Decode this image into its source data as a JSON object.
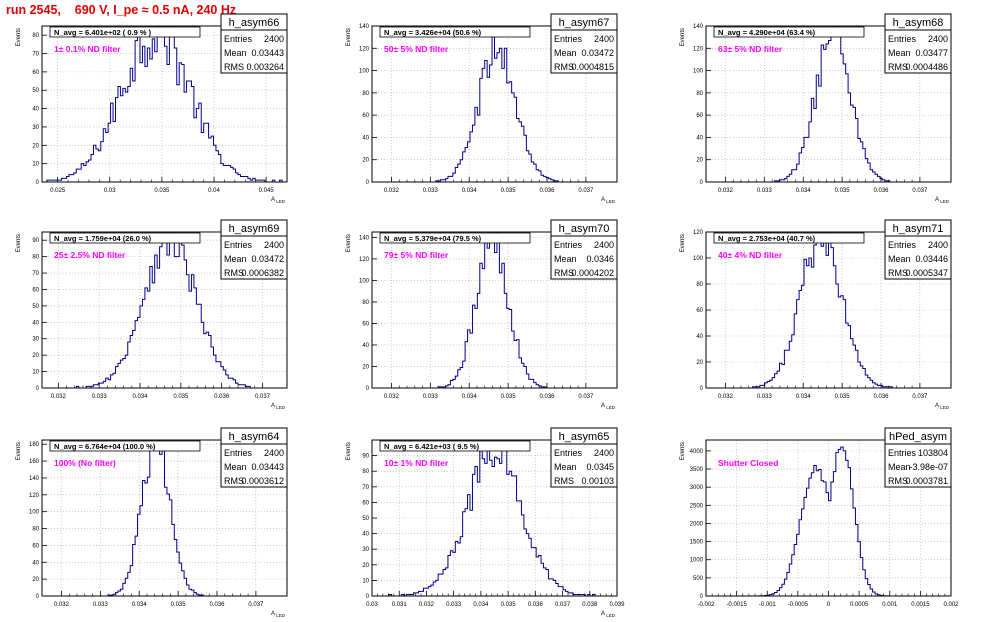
{
  "page": {
    "run_title": "run 2545,    690 V, I_pe ≈ 0.5 nA, 240 Hz"
  },
  "colors": {
    "histogram": "#00008b",
    "annotation": "#ff00ff",
    "title": "#e00000",
    "grid": "#b0b0b0"
  },
  "chart_data": [
    {
      "type": "bar",
      "name": "h_asym66",
      "ylabel": "Events",
      "xlabel": "A_LED",
      "n_avg_text": "N_avg = 6.401e+02 ( 0.9 % )",
      "annotation": "1± 0.1% ND filter",
      "stats": {
        "entries_label": "Entries",
        "entries": "2400",
        "mean_label": "Mean",
        "mean": "0.03443",
        "rms_label": "RMS",
        "rms": "0.003264"
      },
      "xlim": [
        0.0235,
        0.047
      ],
      "ylim": [
        0,
        85
      ],
      "xticks": [
        0.025,
        0.03,
        0.035,
        0.04,
        0.045
      ],
      "xtick_labels": [
        "0.025",
        "0.03",
        "0.035",
        "0.04",
        "0.045"
      ],
      "yticks": [
        0,
        10,
        20,
        30,
        40,
        50,
        60,
        70,
        80
      ],
      "mean": 0.03443,
      "rms": 0.003264,
      "peak": 83,
      "total": 2400,
      "shape": "wide"
    },
    {
      "type": "bar",
      "name": "h_asym67",
      "ylabel": "Events",
      "xlabel": "A_LED",
      "n_avg_text": "N_avg = 3.426e+04 (50.6 %)",
      "annotation": "50± 5% ND filter",
      "stats": {
        "entries_label": "Entries",
        "entries": "2400",
        "mean_label": "Mean",
        "mean": "0.03472",
        "rms_label": "RMS",
        "rms": "0.0004815"
      },
      "xlim": [
        0.0315,
        0.0378
      ],
      "ylim": [
        0,
        140
      ],
      "xticks": [
        0.032,
        0.033,
        0.034,
        0.035,
        0.036,
        0.037
      ],
      "xtick_labels": [
        "0.032",
        "0.033",
        "0.034",
        "0.035",
        "0.036",
        "0.037"
      ],
      "yticks": [
        0,
        20,
        40,
        60,
        80,
        100,
        120,
        140
      ],
      "mean": 0.03472,
      "rms": 0.0004815,
      "peak": 118,
      "total": 2400,
      "shape": "gauss"
    },
    {
      "type": "bar",
      "name": "h_asym68",
      "ylabel": "Events",
      "xlabel": "A_LED",
      "n_avg_text": "N_avg = 4.290e+04 (63.4 %)",
      "annotation": "63± 5% ND filter",
      "stats": {
        "entries_label": "Entries",
        "entries": "2400",
        "mean_label": "Mean",
        "mean": "0.03477",
        "rms_label": "RMS",
        "rms": "0.0004486"
      },
      "xlim": [
        0.0315,
        0.0378
      ],
      "ylim": [
        0,
        140
      ],
      "xticks": [
        0.032,
        0.033,
        0.034,
        0.035,
        0.036,
        0.037
      ],
      "xtick_labels": [
        "0.032",
        "0.033",
        "0.034",
        "0.035",
        "0.036",
        "0.037"
      ],
      "yticks": [
        0,
        20,
        40,
        60,
        80,
        100,
        120,
        140
      ],
      "mean": 0.03477,
      "rms": 0.0004486,
      "peak": 135,
      "total": 2400,
      "shape": "gauss"
    },
    {
      "type": "bar",
      "name": "h_asym69",
      "ylabel": "Events",
      "xlabel": "A_LED",
      "n_avg_text": "N_avg = 1.759e+04 (26.0 %)",
      "annotation": "25± 2.5% ND filter",
      "stats": {
        "entries_label": "Entries",
        "entries": "2400",
        "mean_label": "Mean",
        "mean": "0.03472",
        "rms_label": "RMS",
        "rms": "0.0006382"
      },
      "xlim": [
        0.0316,
        0.0376
      ],
      "ylim": [
        0,
        95
      ],
      "xticks": [
        0.032,
        0.033,
        0.034,
        0.035,
        0.036,
        0.037
      ],
      "xtick_labels": [
        "0.032",
        "0.033",
        "0.034",
        "0.035",
        "0.036",
        "0.037"
      ],
      "yticks": [
        0,
        10,
        20,
        30,
        40,
        50,
        60,
        70,
        80,
        90
      ],
      "mean": 0.03472,
      "rms": 0.0006382,
      "peak": 92,
      "total": 2400,
      "shape": "gauss"
    },
    {
      "type": "bar",
      "name": "h_asym70",
      "ylabel": "Events",
      "xlabel": "A_LED",
      "n_avg_text": "N_avg = 5.379e+04 (79.5 %)",
      "annotation": "79± 5% ND filter",
      "stats": {
        "entries_label": "Entries",
        "entries": "2400",
        "mean_label": "Mean",
        "mean": "0.0346",
        "rms_label": "RMS",
        "rms": "0.0004202"
      },
      "xlim": [
        0.0315,
        0.0378
      ],
      "ylim": [
        0,
        145
      ],
      "xticks": [
        0.032,
        0.033,
        0.034,
        0.035,
        0.036,
        0.037
      ],
      "xtick_labels": [
        "0.032",
        "0.033",
        "0.034",
        "0.035",
        "0.036",
        "0.037"
      ],
      "yticks": [
        0,
        20,
        40,
        60,
        80,
        100,
        120,
        140
      ],
      "mean": 0.0346,
      "rms": 0.0004202,
      "peak": 136,
      "total": 2400,
      "shape": "gauss"
    },
    {
      "type": "bar",
      "name": "h_asym71",
      "ylabel": "Events",
      "xlabel": "A_LED",
      "n_avg_text": "N_avg = 2.753e+04 (40.7 %)",
      "annotation": "40± 4% ND filter",
      "stats": {
        "entries_label": "Entries",
        "entries": "2400",
        "mean_label": "Mean",
        "mean": "0.03446",
        "rms_label": "RMS",
        "rms": "0.0005347"
      },
      "xlim": [
        0.0315,
        0.0378
      ],
      "ylim": [
        0,
        120
      ],
      "xticks": [
        0.032,
        0.033,
        0.034,
        0.035,
        0.036,
        0.037
      ],
      "xtick_labels": [
        "0.032",
        "0.033",
        "0.034",
        "0.035",
        "0.036",
        "0.037"
      ],
      "yticks": [
        0,
        20,
        40,
        60,
        80,
        100,
        120
      ],
      "mean": 0.03446,
      "rms": 0.0005347,
      "peak": 115,
      "total": 2400,
      "shape": "gauss"
    },
    {
      "type": "bar",
      "name": "h_asym64",
      "ylabel": "Events",
      "xlabel": "A_LED",
      "n_avg_text": "N_avg = 6.764e+04 (100.0 %)",
      "annotation": "100% (No filter)",
      "stats": {
        "entries_label": "Entries",
        "entries": "2400",
        "mean_label": "Mean",
        "mean": "0.03443",
        "rms_label": "RMS",
        "rms": "0.0003612"
      },
      "xlim": [
        0.0315,
        0.0378
      ],
      "ylim": [
        0,
        185
      ],
      "xticks": [
        0.032,
        0.033,
        0.034,
        0.035,
        0.036,
        0.037
      ],
      "xtick_labels": [
        "0.032",
        "0.033",
        "0.034",
        "0.035",
        "0.036",
        "0.037"
      ],
      "yticks": [
        0,
        20,
        40,
        60,
        80,
        100,
        120,
        140,
        160,
        180
      ],
      "mean": 0.03443,
      "rms": 0.0003612,
      "peak": 180,
      "total": 2400,
      "shape": "gauss"
    },
    {
      "type": "bar",
      "name": "h_asym65",
      "ylabel": "Events",
      "xlabel": "A_LED",
      "n_avg_text": "N_avg = 6.421e+03 ( 9.5 %)",
      "annotation": "10± 1% ND filter",
      "stats": {
        "entries_label": "Entries",
        "entries": "2400",
        "mean_label": "Mean",
        "mean": "0.0345",
        "rms_label": "RMS",
        "rms": "0.00103"
      },
      "xlim": [
        0.03,
        0.039
      ],
      "ylim": [
        0,
        100
      ],
      "xticks": [
        0.03,
        0.031,
        0.032,
        0.033,
        0.034,
        0.035,
        0.036,
        0.037,
        0.038,
        0.039
      ],
      "xtick_labels": [
        "0.03",
        "0.031",
        "0.032",
        "0.033",
        "0.034",
        "0.035",
        "0.036",
        "0.037",
        "0.038",
        "0.039"
      ],
      "yticks": [
        0,
        10,
        20,
        30,
        40,
        50,
        60,
        70,
        80,
        90
      ],
      "mean": 0.0345,
      "rms": 0.00103,
      "peak": 90,
      "total": 2400,
      "shape": "gauss"
    },
    {
      "type": "bar",
      "name": "hPed_asym",
      "ylabel": "Events",
      "xlabel": "",
      "n_avg_text": "",
      "annotation": "Shutter Closed",
      "stats": {
        "entries_label": "Entries",
        "entries": "103804",
        "mean_label": "Mean",
        "mean": "-3.98e-07",
        "rms_label": "RMS",
        "rms": "0.0003781"
      },
      "xlim": [
        -0.002,
        0.002
      ],
      "ylim": [
        0,
        4300
      ],
      "xticks": [
        -0.002,
        -0.0015,
        -0.001,
        -0.0005,
        0,
        0.0005,
        0.001,
        0.0015,
        0.002
      ],
      "xtick_labels": [
        "-0.002",
        "-0.0015",
        "-0.001",
        "-0.0005",
        "0",
        "0.0005",
        "0.001",
        "0.0015",
        "0.002"
      ],
      "yticks": [
        0,
        500,
        1000,
        1500,
        2000,
        2500,
        3000,
        3500,
        4000
      ],
      "mean": -3.98e-07,
      "rms": 0.0003781,
      "peak": 4000,
      "total": 103804,
      "shape": "double"
    }
  ]
}
